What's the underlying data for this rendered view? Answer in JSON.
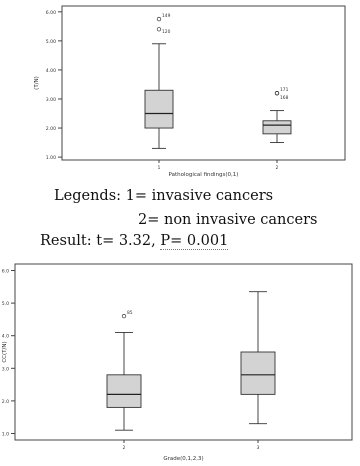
{
  "legend_text": {
    "line1": "Legends: 1= invasive cancers",
    "line2": "2= non invasive cancers",
    "result_prefix": "Result: t= 3.32,",
    "result_p": "P= 0.001"
  },
  "chart_data": [
    {
      "type": "boxplot",
      "xlabel": "Pathological findings(0,1)",
      "ylabel": "(T/N)",
      "ylim": [
        0.9,
        6.2
      ],
      "yticks": [
        "1.00",
        "2.00",
        "3.00",
        "4.00",
        "5.00",
        "6.00"
      ],
      "grid": false,
      "boxes": [
        {
          "category": "1",
          "whisker_low": 1.3,
          "q1": 2.0,
          "median": 2.5,
          "q3": 3.3,
          "whisker_high": 4.9,
          "outliers": [
            {
              "value": 5.75,
              "label": "149"
            },
            {
              "value": 5.4,
              "label": "120"
            }
          ]
        },
        {
          "category": "2",
          "whisker_low": 1.5,
          "q1": 1.8,
          "median": 2.1,
          "q3": 2.25,
          "whisker_high": 2.6,
          "outliers": [
            {
              "value": 3.2,
              "label": "171"
            },
            {
              "value": 3.2,
              "label": "168"
            }
          ]
        }
      ]
    },
    {
      "type": "boxplot",
      "xlabel": "Grade(0,1,2,3)",
      "ylabel": "CC(T/N)",
      "ylim": [
        0.8,
        6.2
      ],
      "yticks": [
        "1.0",
        "2.0",
        "3.0",
        "4.0",
        "5.0",
        "6.0"
      ],
      "grid": false,
      "boxes": [
        {
          "category": "2",
          "whisker_low": 1.1,
          "q1": 1.8,
          "median": 2.2,
          "q3": 2.8,
          "whisker_high": 4.1,
          "outliers": [
            {
              "value": 4.6,
              "label": "85"
            }
          ]
        },
        {
          "category": "3",
          "whisker_low": 1.3,
          "q1": 2.2,
          "median": 2.8,
          "q3": 3.5,
          "whisker_high": 5.35,
          "outliers": []
        }
      ]
    }
  ]
}
